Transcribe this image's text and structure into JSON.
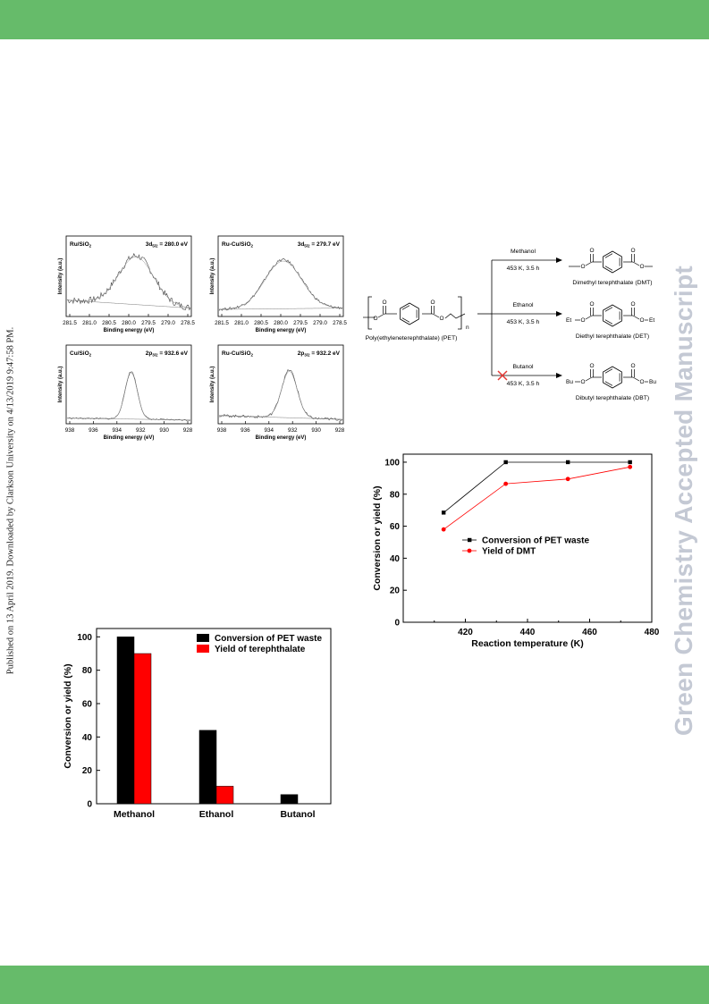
{
  "page": {
    "side_note": "Published on 13 April 2019. Downloaded by Clarkson University on 4/13/2019 9:47:58 PM.",
    "watermark": "Green Chemistry Accepted Manuscript",
    "colors": {
      "band": "#66bb6a",
      "watermark": "#c4c9d4",
      "black_series": "#000000",
      "red_series": "#ff0000"
    }
  },
  "xps": {
    "panels": [
      {
        "sample": "Ru/SiO",
        "sub": "2",
        "peak_main": "3d",
        "peak_sub": "5/2",
        "peak_value": " = 280.0 eV",
        "ylabel": "Intensity (a.u.)",
        "xlabel": "Binding energy (eV)",
        "ticks": [
          "281.5",
          "281.0",
          "280.5",
          "280.0",
          "279.5",
          "279.0",
          "278.5"
        ]
      },
      {
        "sample": "Ru-Cu/SiO",
        "sub": "2",
        "peak_main": "3d",
        "peak_sub": "5/2",
        "peak_value": " = 279.7 eV",
        "ylabel": "Intensity (a.u.)",
        "xlabel": "Binding energy (eV)",
        "ticks": [
          "281.5",
          "281.0",
          "280.5",
          "280.0",
          "279.5",
          "279.0",
          "278.5"
        ]
      },
      {
        "sample": "Cu/SiO",
        "sub": "2",
        "peak_main": "2p",
        "peak_sub": "3/2",
        "peak_value": " = 932.6 eV",
        "ylabel": "Intensity (a.u.)",
        "xlabel": "Binding  energy (eV)",
        "ticks": [
          "938",
          "936",
          "934",
          "932",
          "930",
          "928"
        ]
      },
      {
        "sample": "Ru-Cu/SiO",
        "sub": "2",
        "peak_main": "2p",
        "peak_sub": "3/2",
        "peak_value": " = 932.2 eV",
        "ylabel": "Intensity (a.u.)",
        "xlabel": "Binding  energy (eV)",
        "ticks": [
          "938",
          "936",
          "934",
          "932",
          "930",
          "928"
        ]
      }
    ]
  },
  "scheme": {
    "polymer": "Poly(ethyleneterephthalate) (PET)",
    "n": "n",
    "reactions": [
      {
        "reagent": "Methanol",
        "conditions": "453 K, 3.5 h",
        "product": "Dimethyl terephthalate (DMT)",
        "left_group": "",
        "right_group": "",
        "failed": false
      },
      {
        "reagent": "Ethanol",
        "conditions": "453 K, 3.5 h",
        "product": "Diethyl terephthalate (DET)",
        "left_group": "Et",
        "right_group": "Et",
        "failed": false
      },
      {
        "reagent": "Butanol",
        "conditions": "453 K, 3.5 h",
        "product": "Dibutyl terephthalate (DBT)",
        "left_group": "Bu",
        "right_group": "Bu",
        "failed": true
      }
    ]
  },
  "chart_data": [
    {
      "type": "line",
      "x": [
        413,
        433,
        453,
        473
      ],
      "series": [
        {
          "name": "Conversion of PET waste",
          "values": [
            68.5,
            100,
            100,
            100
          ],
          "color": "#000000",
          "marker": "square"
        },
        {
          "name": "Yield of DMT",
          "values": [
            58,
            86.5,
            89.5,
            97
          ],
          "color": "#ff0000",
          "marker": "circle"
        }
      ],
      "xlabel": "Reaction temperature (K)",
      "ylabel": "Conversion or yield (%)",
      "xlim": [
        400,
        480
      ],
      "ylim": [
        0,
        105
      ],
      "xticks": [
        420,
        440,
        460,
        480
      ],
      "yticks": [
        0,
        20,
        40,
        60,
        80,
        100
      ],
      "legend": "center-right",
      "grid": false
    },
    {
      "type": "bar",
      "categories": [
        "Methanol",
        "Ethanol",
        "Butanol"
      ],
      "series": [
        {
          "name": "Conversion of PET waste",
          "values": [
            100,
            44,
            5.5
          ],
          "color": "#000000"
        },
        {
          "name": "Yield of terephthalate",
          "values": [
            90,
            10.5,
            0
          ],
          "color": "#ff0000"
        }
      ],
      "ylabel": "Conversion or yield (%)",
      "ylim": [
        0,
        105
      ],
      "yticks": [
        0,
        20,
        40,
        60,
        80,
        100
      ],
      "legend": "top-right",
      "grid": false
    }
  ]
}
